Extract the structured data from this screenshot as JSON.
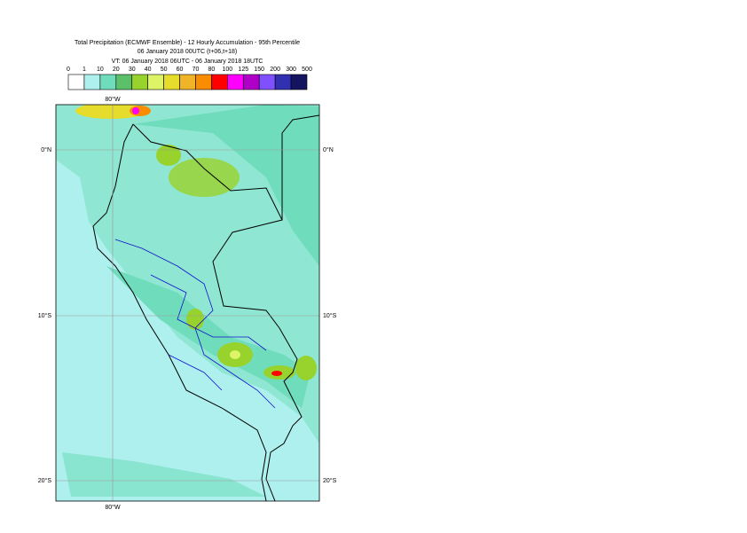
{
  "header": {
    "title_lines": [
      "Total Precipitation (ECMWF Ensemble) - 12 Hourly Accumulation - 95th Percentile",
      "06 January 2018 00UTC (t+06,t+18)",
      "VT: 06 January 2018 06UTC - 06 January 2018 18UTC"
    ]
  },
  "legend": {
    "labels": [
      "0",
      "1",
      "10",
      "20",
      "30",
      "40",
      "50",
      "60",
      "70",
      "80",
      "100",
      "125",
      "150",
      "200",
      "300",
      "500"
    ],
    "colors": [
      "#ffffff",
      "#aef0ee",
      "#6fdcbc",
      "#5cc06a",
      "#98d22c",
      "#dcf466",
      "#e6dc2c",
      "#f0b428",
      "#fa8c00",
      "#ff0000",
      "#ff00ff",
      "#b000c8",
      "#8050ff",
      "#3030b0",
      "#141460"
    ]
  },
  "map": {
    "lon_labels": [
      "80°W"
    ],
    "lat_labels": [
      "0°N",
      "10°S",
      "20°S"
    ]
  }
}
